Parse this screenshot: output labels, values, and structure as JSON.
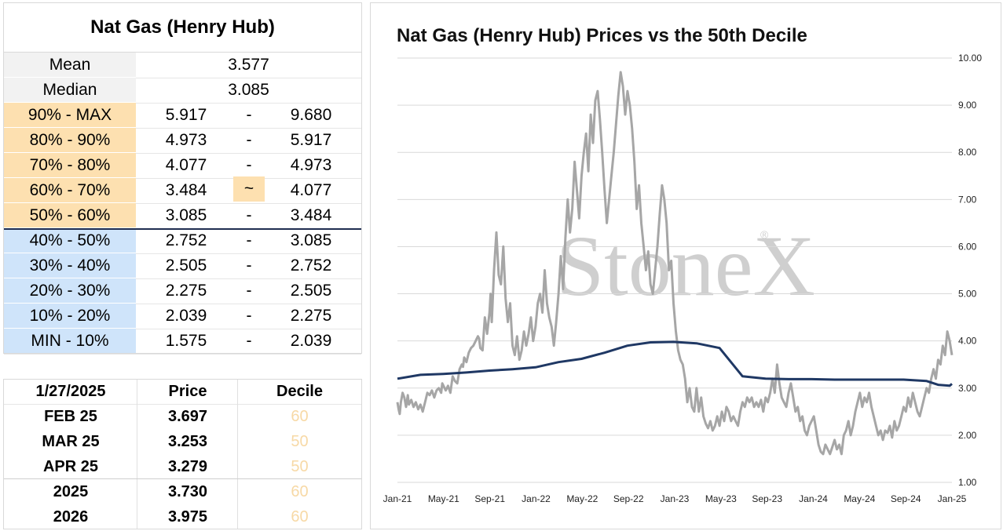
{
  "stats": {
    "title": "Nat Gas (Henry Hub)",
    "mean_label": "Mean",
    "mean": "3.577",
    "median_label": "Median",
    "median": "3.085",
    "deciles": [
      {
        "label": "90% - MAX",
        "low": "5.917",
        "sep": "-",
        "high": "9.680",
        "tone": "orange"
      },
      {
        "label": "80% - 90%",
        "low": "4.973",
        "sep": "-",
        "high": "5.917",
        "tone": "orange"
      },
      {
        "label": "70% - 80%",
        "low": "4.077",
        "sep": "-",
        "high": "4.973",
        "tone": "orange"
      },
      {
        "label": "60% - 70%",
        "low": "3.484",
        "sep": "~",
        "high": "4.077",
        "tone": "orange",
        "current": true
      },
      {
        "label": "50% - 60%",
        "low": "3.085",
        "sep": "-",
        "high": "3.484",
        "tone": "orange"
      },
      {
        "label": "40% - 50%",
        "low": "2.752",
        "sep": "-",
        "high": "3.085",
        "tone": "blue"
      },
      {
        "label": "30% - 40%",
        "low": "2.505",
        "sep": "-",
        "high": "2.752",
        "tone": "blue"
      },
      {
        "label": "20% - 30%",
        "low": "2.275",
        "sep": "-",
        "high": "2.505",
        "tone": "blue"
      },
      {
        "label": "10% - 20%",
        "low": "2.039",
        "sep": "-",
        "high": "2.275",
        "tone": "blue"
      },
      {
        "label": "MIN - 10%",
        "low": "1.575",
        "sep": "-",
        "high": "2.039",
        "tone": "blue"
      }
    ]
  },
  "contracts": {
    "date": "1/27/2025",
    "price_header": "Price",
    "decile_header": "Decile",
    "rows": [
      {
        "name": "FEB 25",
        "price": "3.697",
        "decile": "60"
      },
      {
        "name": "MAR 25",
        "price": "3.253",
        "decile": "50"
      },
      {
        "name": "APR 25",
        "price": "3.279",
        "decile": "50"
      },
      {
        "name": "2025",
        "price": "3.730",
        "decile": "60"
      },
      {
        "name": "2026",
        "price": "3.975",
        "decile": "60"
      }
    ]
  },
  "chart_data": {
    "type": "line",
    "title": "Nat Gas (Henry Hub) Prices vs the 50th Decile",
    "watermark": "StoneX",
    "x_ticks": [
      "Jan-21",
      "May-21",
      "Sep-21",
      "Jan-22",
      "May-22",
      "Sep-22",
      "Jan-23",
      "May-23",
      "Sep-23",
      "Jan-24",
      "May-24",
      "Sep-24",
      "Jan-25"
    ],
    "y_ticks": [
      "1.00",
      "2.00",
      "3.00",
      "4.00",
      "5.00",
      "6.00",
      "7.00",
      "8.00",
      "9.00",
      "10.00"
    ],
    "ylim": [
      1,
      10
    ],
    "grid": true,
    "colors": {
      "price": "#a6a6a6",
      "median": "#1f3864"
    },
    "series": [
      {
        "key": "price",
        "x": [
          0,
          0.1,
          0.2,
          0.3,
          0.45,
          0.6,
          0.75,
          0.9,
          1.0,
          1.2,
          1.4,
          1.6,
          1.8,
          2.0,
          2.2,
          2.4,
          2.6,
          2.8,
          3.0,
          3.2,
          3.4,
          3.6,
          3.8,
          3.9,
          4.0,
          4.2,
          4.4,
          4.6,
          4.8,
          5.0,
          5.2,
          5.4,
          5.6,
          5.7,
          5.8,
          6.0,
          6.2,
          6.4,
          6.6,
          6.8,
          7.0,
          7.1,
          7.2,
          7.4,
          7.6,
          7.8,
          8.0,
          8.1,
          8.2,
          8.4,
          8.6,
          8.8,
          9.0,
          9.2,
          9.4,
          9.6,
          9.8,
          10.0,
          10.2,
          10.4,
          10.6,
          10.8,
          11.0,
          11.2,
          11.4,
          11.6,
          11.8,
          12.0,
          12.2,
          12.4,
          12.6,
          12.8,
          13.0,
          13.2,
          13.4,
          13.6,
          13.8,
          14.0,
          14.2,
          14.4,
          14.6,
          14.8,
          15.0,
          15.2,
          15.4,
          15.6,
          15.8,
          16.0,
          16.2,
          16.4,
          16.6,
          16.8,
          17.0,
          17.2,
          17.4,
          17.6,
          17.8,
          18.0,
          18.2,
          18.4,
          18.6,
          18.8,
          19.0,
          19.2,
          19.4,
          19.6,
          19.8,
          20.0,
          20.2,
          20.4,
          20.6,
          20.8,
          21.0,
          21.2,
          21.4,
          21.6,
          21.8,
          22.0,
          22.2,
          22.4,
          22.6,
          22.8,
          23.0,
          23.2,
          23.4,
          23.6,
          23.8,
          24.0,
          24.2,
          24.4,
          24.6,
          24.8,
          25.0,
          25.2,
          25.4,
          25.6,
          25.8,
          26.0,
          26.2,
          26.4,
          26.6,
          26.8,
          27.0,
          27.2,
          27.4,
          27.6,
          27.8,
          28.0,
          28.2,
          28.4,
          28.6,
          28.8,
          29.0,
          29.2,
          29.4,
          29.6,
          29.8,
          30.0,
          30.2,
          30.4,
          30.6,
          30.8,
          31.0,
          31.2,
          31.4,
          31.6,
          31.8,
          32.0,
          32.2,
          32.4,
          32.6,
          32.8,
          33.0,
          33.2,
          33.4,
          33.6,
          33.8,
          34.0,
          34.2,
          34.4,
          34.6,
          34.8,
          35.0,
          35.2,
          35.4,
          35.6,
          35.8,
          36.0,
          36.2,
          36.4,
          36.6,
          36.8,
          37.0,
          37.2,
          37.4,
          37.6,
          37.8,
          38.0,
          38.2,
          38.4,
          38.6,
          38.8,
          39.0,
          39.2,
          39.4,
          39.6,
          39.8,
          40.0,
          40.2,
          40.4,
          40.6,
          40.8,
          41.0,
          41.2,
          41.4,
          41.6,
          41.8,
          42.0,
          42.2,
          42.4,
          42.6,
          42.8,
          43.0,
          43.2,
          43.4,
          43.6,
          43.8,
          44.0,
          44.2,
          44.4,
          44.6,
          44.8,
          45.0,
          45.2,
          45.4,
          45.6,
          45.8,
          46.0,
          46.2,
          46.4,
          46.6,
          46.8,
          47.0,
          47.2,
          47.4,
          47.6,
          47.8,
          48.0,
          48.2
        ],
        "y": [
          2.7,
          2.55,
          2.45,
          2.7,
          2.9,
          2.8,
          2.6,
          2.85,
          2.65,
          2.75,
          2.6,
          2.7,
          2.55,
          2.65,
          2.5,
          2.7,
          2.9,
          2.85,
          2.95,
          2.8,
          2.95,
          3.0,
          2.9,
          3.1,
          3.05,
          2.95,
          3.05,
          2.9,
          3.25,
          3.15,
          3.1,
          3.4,
          3.5,
          3.45,
          3.65,
          3.55,
          3.75,
          3.85,
          3.9,
          4.0,
          4.1,
          4.05,
          3.85,
          3.8,
          4.5,
          4.15,
          4.6,
          5.0,
          4.4,
          5.5,
          6.3,
          5.4,
          5.2,
          6.0,
          4.9,
          4.4,
          4.8,
          3.9,
          3.7,
          4.1,
          3.6,
          3.8,
          4.2,
          3.9,
          4.15,
          4.5,
          4.0,
          4.3,
          4.8,
          5.0,
          4.6,
          5.5,
          4.8,
          4.5,
          4.3,
          3.9,
          4.4,
          5.0,
          5.8,
          5.1,
          6.2,
          7.0,
          6.3,
          6.8,
          7.8,
          7.2,
          6.6,
          7.5,
          8.0,
          8.4,
          7.6,
          8.8,
          8.2,
          9.1,
          9.3,
          8.7,
          8.0,
          7.2,
          6.5,
          7.0,
          7.5,
          8.0,
          8.6,
          9.2,
          9.7,
          9.4,
          8.8,
          9.3,
          9.0,
          8.5,
          7.8,
          6.8,
          7.3,
          6.5,
          6.0,
          5.5,
          5.9,
          5.2,
          5.0,
          5.5,
          6.0,
          6.7,
          7.3,
          7.0,
          6.5,
          5.5,
          5.7,
          4.8,
          4.2,
          3.8,
          3.6,
          3.5,
          3.2,
          2.7,
          3.0,
          2.6,
          2.5,
          3.0,
          2.5,
          2.8,
          2.4,
          2.25,
          2.15,
          2.3,
          2.1,
          2.2,
          2.4,
          2.2,
          2.5,
          2.3,
          2.6,
          2.5,
          2.3,
          2.4,
          2.3,
          2.2,
          2.5,
          2.7,
          2.6,
          2.8,
          2.7,
          2.8,
          2.6,
          2.7,
          2.6,
          2.75,
          2.5,
          2.8,
          2.7,
          2.9,
          3.2,
          2.9,
          3.5,
          3.1,
          2.8,
          2.7,
          2.6,
          2.9,
          3.1,
          2.8,
          2.5,
          2.6,
          2.3,
          2.4,
          2.1,
          2.0,
          2.2,
          2.3,
          2.4,
          2.1,
          1.8,
          1.65,
          1.6,
          1.8,
          1.7,
          1.6,
          1.75,
          1.9,
          1.7,
          1.8,
          1.6,
          2.0,
          2.1,
          2.3,
          2.0,
          2.2,
          2.5,
          2.7,
          2.9,
          2.6,
          2.8,
          2.7,
          2.9,
          2.6,
          2.4,
          2.2,
          2.0,
          2.1,
          1.9,
          2.1,
          2.05,
          2.2,
          1.95,
          2.3,
          2.1,
          2.2,
          2.4,
          2.6,
          2.5,
          2.8,
          2.6,
          2.9,
          2.7,
          2.5,
          2.4,
          2.6,
          2.8,
          3.0,
          2.9,
          3.2,
          3.4,
          3.2,
          3.6,
          3.5,
          3.9,
          3.7,
          4.2,
          4.0,
          3.7
        ]
      },
      {
        "key": "median",
        "x": [
          0,
          2,
          4,
          6,
          8,
          10,
          12,
          14,
          16,
          18,
          20,
          22,
          24,
          26,
          28,
          30,
          32,
          34,
          36,
          38,
          40,
          42,
          44,
          46,
          47,
          48,
          48.2
        ],
        "y": [
          3.2,
          3.28,
          3.3,
          3.33,
          3.37,
          3.4,
          3.44,
          3.55,
          3.62,
          3.75,
          3.9,
          3.97,
          3.98,
          3.95,
          3.85,
          3.25,
          3.2,
          3.19,
          3.19,
          3.18,
          3.18,
          3.18,
          3.18,
          3.15,
          3.07,
          3.05,
          3.09
        ]
      }
    ]
  }
}
